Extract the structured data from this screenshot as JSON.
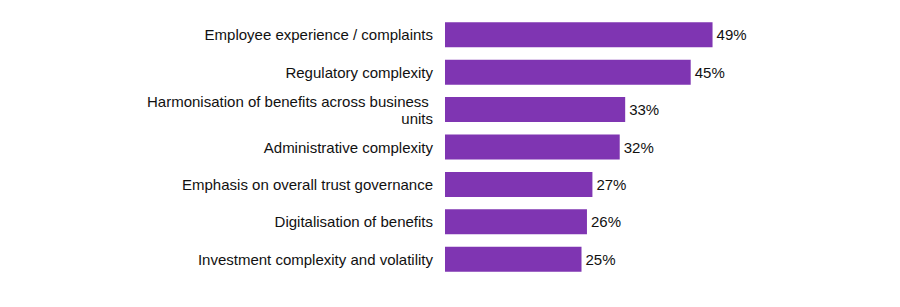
{
  "chart_data": {
    "type": "bar",
    "orientation": "horizontal",
    "categories": [
      "Employee experience / complaints",
      "Regulatory complexity",
      "Harmonisation of benefits across business units",
      "Administrative complexity",
      "Emphasis on overall trust governance",
      "Digitalisation of benefits",
      "Investment complexity and volatility"
    ],
    "values": [
      49,
      45,
      33,
      32,
      27,
      26,
      25
    ],
    "value_labels": [
      "49%",
      "45%",
      "33%",
      "32%",
      "27%",
      "26%",
      "25%"
    ],
    "color": "#7f35b2",
    "xlim": [
      0,
      50
    ],
    "data_labels": true,
    "tick_labels": "y",
    "grid": false
  }
}
